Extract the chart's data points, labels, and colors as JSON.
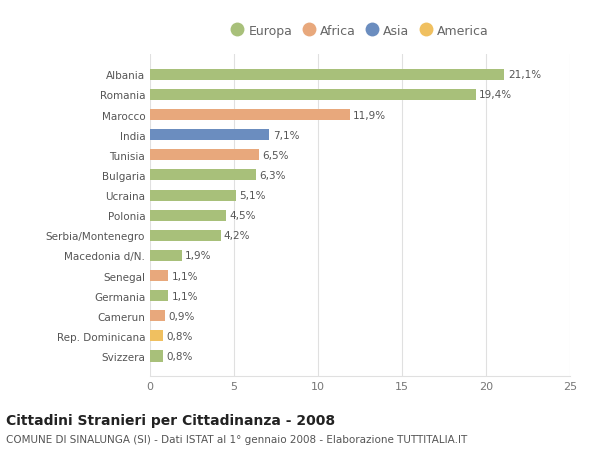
{
  "categories": [
    "Albania",
    "Romania",
    "Marocco",
    "India",
    "Tunisia",
    "Bulgaria",
    "Ucraina",
    "Polonia",
    "Serbia/Montenegro",
    "Macedonia d/N.",
    "Senegal",
    "Germania",
    "Camerun",
    "Rep. Dominicana",
    "Svizzera"
  ],
  "values": [
    21.1,
    19.4,
    11.9,
    7.1,
    6.5,
    6.3,
    5.1,
    4.5,
    4.2,
    1.9,
    1.1,
    1.1,
    0.9,
    0.8,
    0.8
  ],
  "labels": [
    "21,1%",
    "19,4%",
    "11,9%",
    "7,1%",
    "6,5%",
    "6,3%",
    "5,1%",
    "4,5%",
    "4,2%",
    "1,9%",
    "1,1%",
    "1,1%",
    "0,9%",
    "0,8%",
    "0,8%"
  ],
  "continents": [
    "Europa",
    "Europa",
    "Africa",
    "Asia",
    "Africa",
    "Europa",
    "Europa",
    "Europa",
    "Europa",
    "Europa",
    "Africa",
    "Europa",
    "Africa",
    "America",
    "Europa"
  ],
  "continent_colors": {
    "Europa": "#a8c07a",
    "Africa": "#e8a87c",
    "Asia": "#6b8dbf",
    "America": "#f0c060"
  },
  "legend_order": [
    "Europa",
    "Africa",
    "Asia",
    "America"
  ],
  "title": "Cittadini Stranieri per Cittadinanza - 2008",
  "subtitle": "COMUNE DI SINALUNGA (SI) - Dati ISTAT al 1° gennaio 2008 - Elaborazione TUTTITALIA.IT",
  "xlim": [
    0,
    25
  ],
  "xticks": [
    0,
    5,
    10,
    15,
    20,
    25
  ],
  "bg_color": "#ffffff",
  "grid_color": "#e0e0e0",
  "bar_height": 0.55,
  "title_fontsize": 10,
  "subtitle_fontsize": 7.5,
  "label_fontsize": 7.5,
  "ytick_fontsize": 7.5,
  "xtick_fontsize": 8,
  "legend_fontsize": 9
}
